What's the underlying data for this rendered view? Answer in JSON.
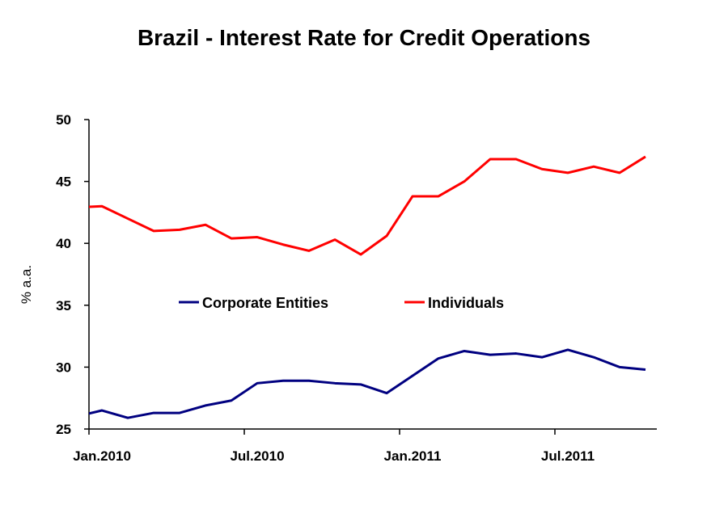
{
  "chart_data": {
    "type": "line",
    "title": "Brazil - Interest Rate for Credit Operations",
    "xlabel": "",
    "ylabel": "% a.a.",
    "ylim": [
      25,
      50
    ],
    "yticks": [
      "25",
      "30",
      "35",
      "40",
      "45",
      "50"
    ],
    "xtick_labels": [
      "Jan.2010",
      "Jul.2010",
      "Jan.2011",
      "Jul.2011"
    ],
    "grid": false,
    "legend_placement": "center",
    "x": [
      "Dec.2009",
      "Jan.2010",
      "Feb.2010",
      "Mar.2010",
      "Apr.2010",
      "May.2010",
      "Jun.2010",
      "Jul.2010",
      "Aug.2010",
      "Sep.2010",
      "Oct.2010",
      "Nov.2010",
      "Dec.2010",
      "Jan.2011",
      "Feb.2011",
      "Mar.2011",
      "Apr.2011",
      "May.2011",
      "Jun.2011",
      "Jul.2011",
      "Aug.2011",
      "Sep.2011",
      "Oct.2011"
    ],
    "series": [
      {
        "name": "Corporate Entities",
        "color": "#000080",
        "values": [
          26.0,
          26.5,
          25.9,
          26.3,
          26.3,
          26.9,
          27.3,
          28.7,
          28.9,
          28.9,
          28.7,
          28.6,
          27.9,
          29.3,
          30.7,
          31.3,
          31.0,
          31.1,
          30.8,
          31.4,
          30.8,
          30.0,
          29.8
        ]
      },
      {
        "name": "Individuals",
        "color": "#ff0000",
        "values": [
          42.9,
          43.0,
          42.0,
          41.0,
          41.1,
          41.5,
          40.4,
          40.5,
          39.9,
          39.4,
          40.3,
          39.1,
          40.6,
          43.8,
          43.8,
          45.0,
          46.8,
          46.8,
          46.0,
          45.7,
          46.2,
          45.7,
          47.0
        ]
      }
    ]
  }
}
